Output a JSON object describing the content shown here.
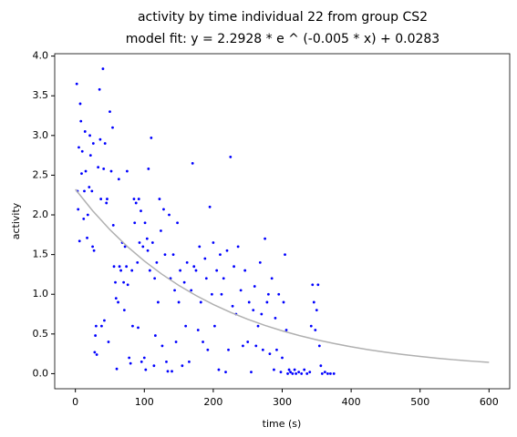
{
  "chart_data": {
    "type": "scatter",
    "title": "activity by time individual 22 from group CS2",
    "subtitle": "model fit: y = 2.2928 * e ^ (-0.005 * x) + 0.0283",
    "xlabel": "time (s)",
    "ylabel": "activity",
    "xlim": [
      -30,
      630
    ],
    "ylim": [
      -0.19,
      4.03
    ],
    "xticks": [
      0,
      100,
      200,
      300,
      400,
      500,
      600
    ],
    "yticks": [
      {
        "value": 0,
        "label": "0.0"
      },
      {
        "value": 0.5,
        "label": "0.5"
      },
      {
        "value": 1,
        "label": "1.0"
      },
      {
        "value": 1.5,
        "label": "1.5"
      },
      {
        "value": 2,
        "label": "2.0"
      },
      {
        "value": 2.5,
        "label": "2.5"
      },
      {
        "value": 3,
        "label": "3.0"
      },
      {
        "value": 3.5,
        "label": "3.5"
      },
      {
        "value": 4,
        "label": "4.0"
      }
    ],
    "grid": false,
    "series": [
      {
        "type": "scatter",
        "color": "#0000ff",
        "x": [
          2,
          3,
          4,
          5,
          6,
          7,
          8,
          9,
          10,
          12,
          13,
          14,
          15,
          17,
          18,
          20,
          21,
          22,
          24,
          25,
          26,
          27,
          28,
          29,
          30,
          31,
          33,
          35,
          36,
          37,
          38,
          40,
          41,
          42,
          43,
          45,
          46,
          48,
          50,
          52,
          54,
          55,
          56,
          58,
          59,
          60,
          62,
          63,
          64,
          66,
          68,
          70,
          71,
          72,
          74,
          75,
          76,
          78,
          80,
          82,
          83,
          85,
          86,
          88,
          90,
          91,
          92,
          93,
          95,
          96,
          98,
          100,
          101,
          102,
          104,
          105,
          106,
          108,
          110,
          112,
          114,
          115,
          116,
          118,
          120,
          122,
          124,
          126,
          128,
          130,
          132,
          134,
          136,
          138,
          140,
          142,
          144,
          146,
          148,
          150,
          152,
          155,
          158,
          160,
          162,
          165,
          168,
          170,
          172,
          175,
          178,
          180,
          182,
          185,
          188,
          190,
          192,
          195,
          198,
          200,
          202,
          205,
          208,
          210,
          212,
          215,
          218,
          220,
          222,
          225,
          228,
          230,
          233,
          236,
          240,
          243,
          246,
          250,
          252,
          255,
          258,
          260,
          262,
          265,
          268,
          270,
          272,
          275,
          278,
          280,
          282,
          285,
          288,
          290,
          292,
          295,
          298,
          300,
          302,
          304,
          306,
          308,
          310,
          312,
          315,
          318,
          320,
          324,
          328,
          332,
          336,
          340,
          342,
          344,
          346,
          348,
          350,
          352,
          354,
          356,
          358,
          362,
          366,
          370,
          375
        ],
        "values": [
          3.65,
          2.3,
          2.07,
          2.85,
          1.67,
          3.4,
          3.18,
          2.52,
          2.8,
          1.95,
          2.3,
          3.05,
          2.55,
          1.71,
          2.0,
          2.35,
          3.0,
          2.75,
          2.3,
          1.6,
          2.9,
          1.55,
          0.27,
          0.48,
          0.6,
          0.24,
          2.6,
          3.58,
          2.95,
          2.2,
          0.6,
          3.84,
          2.58,
          0.67,
          2.9,
          2.15,
          2.2,
          0.4,
          3.3,
          2.55,
          3.1,
          1.87,
          1.35,
          1.15,
          0.95,
          0.06,
          0.9,
          2.45,
          1.35,
          1.3,
          1.65,
          1.15,
          0.8,
          1.6,
          1.35,
          2.55,
          1.12,
          0.2,
          0.13,
          1.3,
          0.6,
          2.2,
          1.9,
          2.15,
          1.4,
          0.58,
          2.2,
          1.65,
          2.05,
          0.15,
          1.6,
          0.2,
          1.9,
          0.05,
          1.7,
          1.55,
          2.58,
          1.3,
          2.97,
          1.65,
          0.1,
          1.2,
          0.48,
          1.4,
          0.9,
          2.2,
          1.8,
          0.35,
          2.07,
          1.5,
          0.15,
          0.03,
          2.0,
          1.2,
          0.03,
          1.5,
          1.05,
          0.4,
          1.9,
          0.9,
          1.3,
          0.1,
          1.15,
          0.6,
          1.4,
          0.15,
          1.05,
          2.65,
          1.35,
          1.3,
          0.55,
          1.6,
          0.9,
          0.4,
          1.45,
          1.2,
          0.3,
          2.1,
          1.0,
          1.65,
          0.6,
          1.3,
          0.05,
          1.5,
          1.0,
          1.2,
          0.02,
          1.55,
          0.3,
          2.73,
          0.85,
          1.35,
          0.75,
          1.6,
          1.05,
          0.35,
          1.3,
          0.4,
          0.9,
          0.02,
          0.8,
          1.1,
          0.35,
          0.6,
          1.4,
          0.75,
          0.3,
          1.7,
          0.9,
          1.0,
          0.25,
          1.2,
          0.05,
          0.7,
          0.3,
          1.0,
          0.02,
          0.2,
          0.9,
          1.5,
          0.55,
          0.0,
          0.05,
          0.02,
          0.0,
          0.05,
          0.0,
          0.02,
          0.0,
          0.05,
          0.0,
          0.02,
          0.6,
          1.12,
          0.9,
          0.55,
          0.8,
          1.12,
          0.35,
          0.1,
          0.0,
          0.02,
          0.0,
          0.0,
          0.0
        ]
      },
      {
        "type": "line",
        "color": "#b0b0b0",
        "x": [
          0,
          25,
          50,
          75,
          100,
          125,
          150,
          175,
          200,
          225,
          250,
          275,
          300,
          325,
          350,
          375,
          400,
          425,
          450,
          475,
          500,
          525,
          550,
          575,
          600
        ],
        "values": [
          2.3211,
          2.0517,
          1.8139,
          1.6041,
          1.4189,
          1.2556,
          1.1114,
          0.9842,
          0.8718,
          0.7728,
          0.6852,
          0.6079,
          0.5398,
          0.4798,
          0.4268,
          0.3801,
          0.3386,
          0.3021,
          0.27,
          0.2415,
          0.2165,
          0.1943,
          0.1748,
          0.1576,
          0.1425
        ]
      }
    ]
  }
}
